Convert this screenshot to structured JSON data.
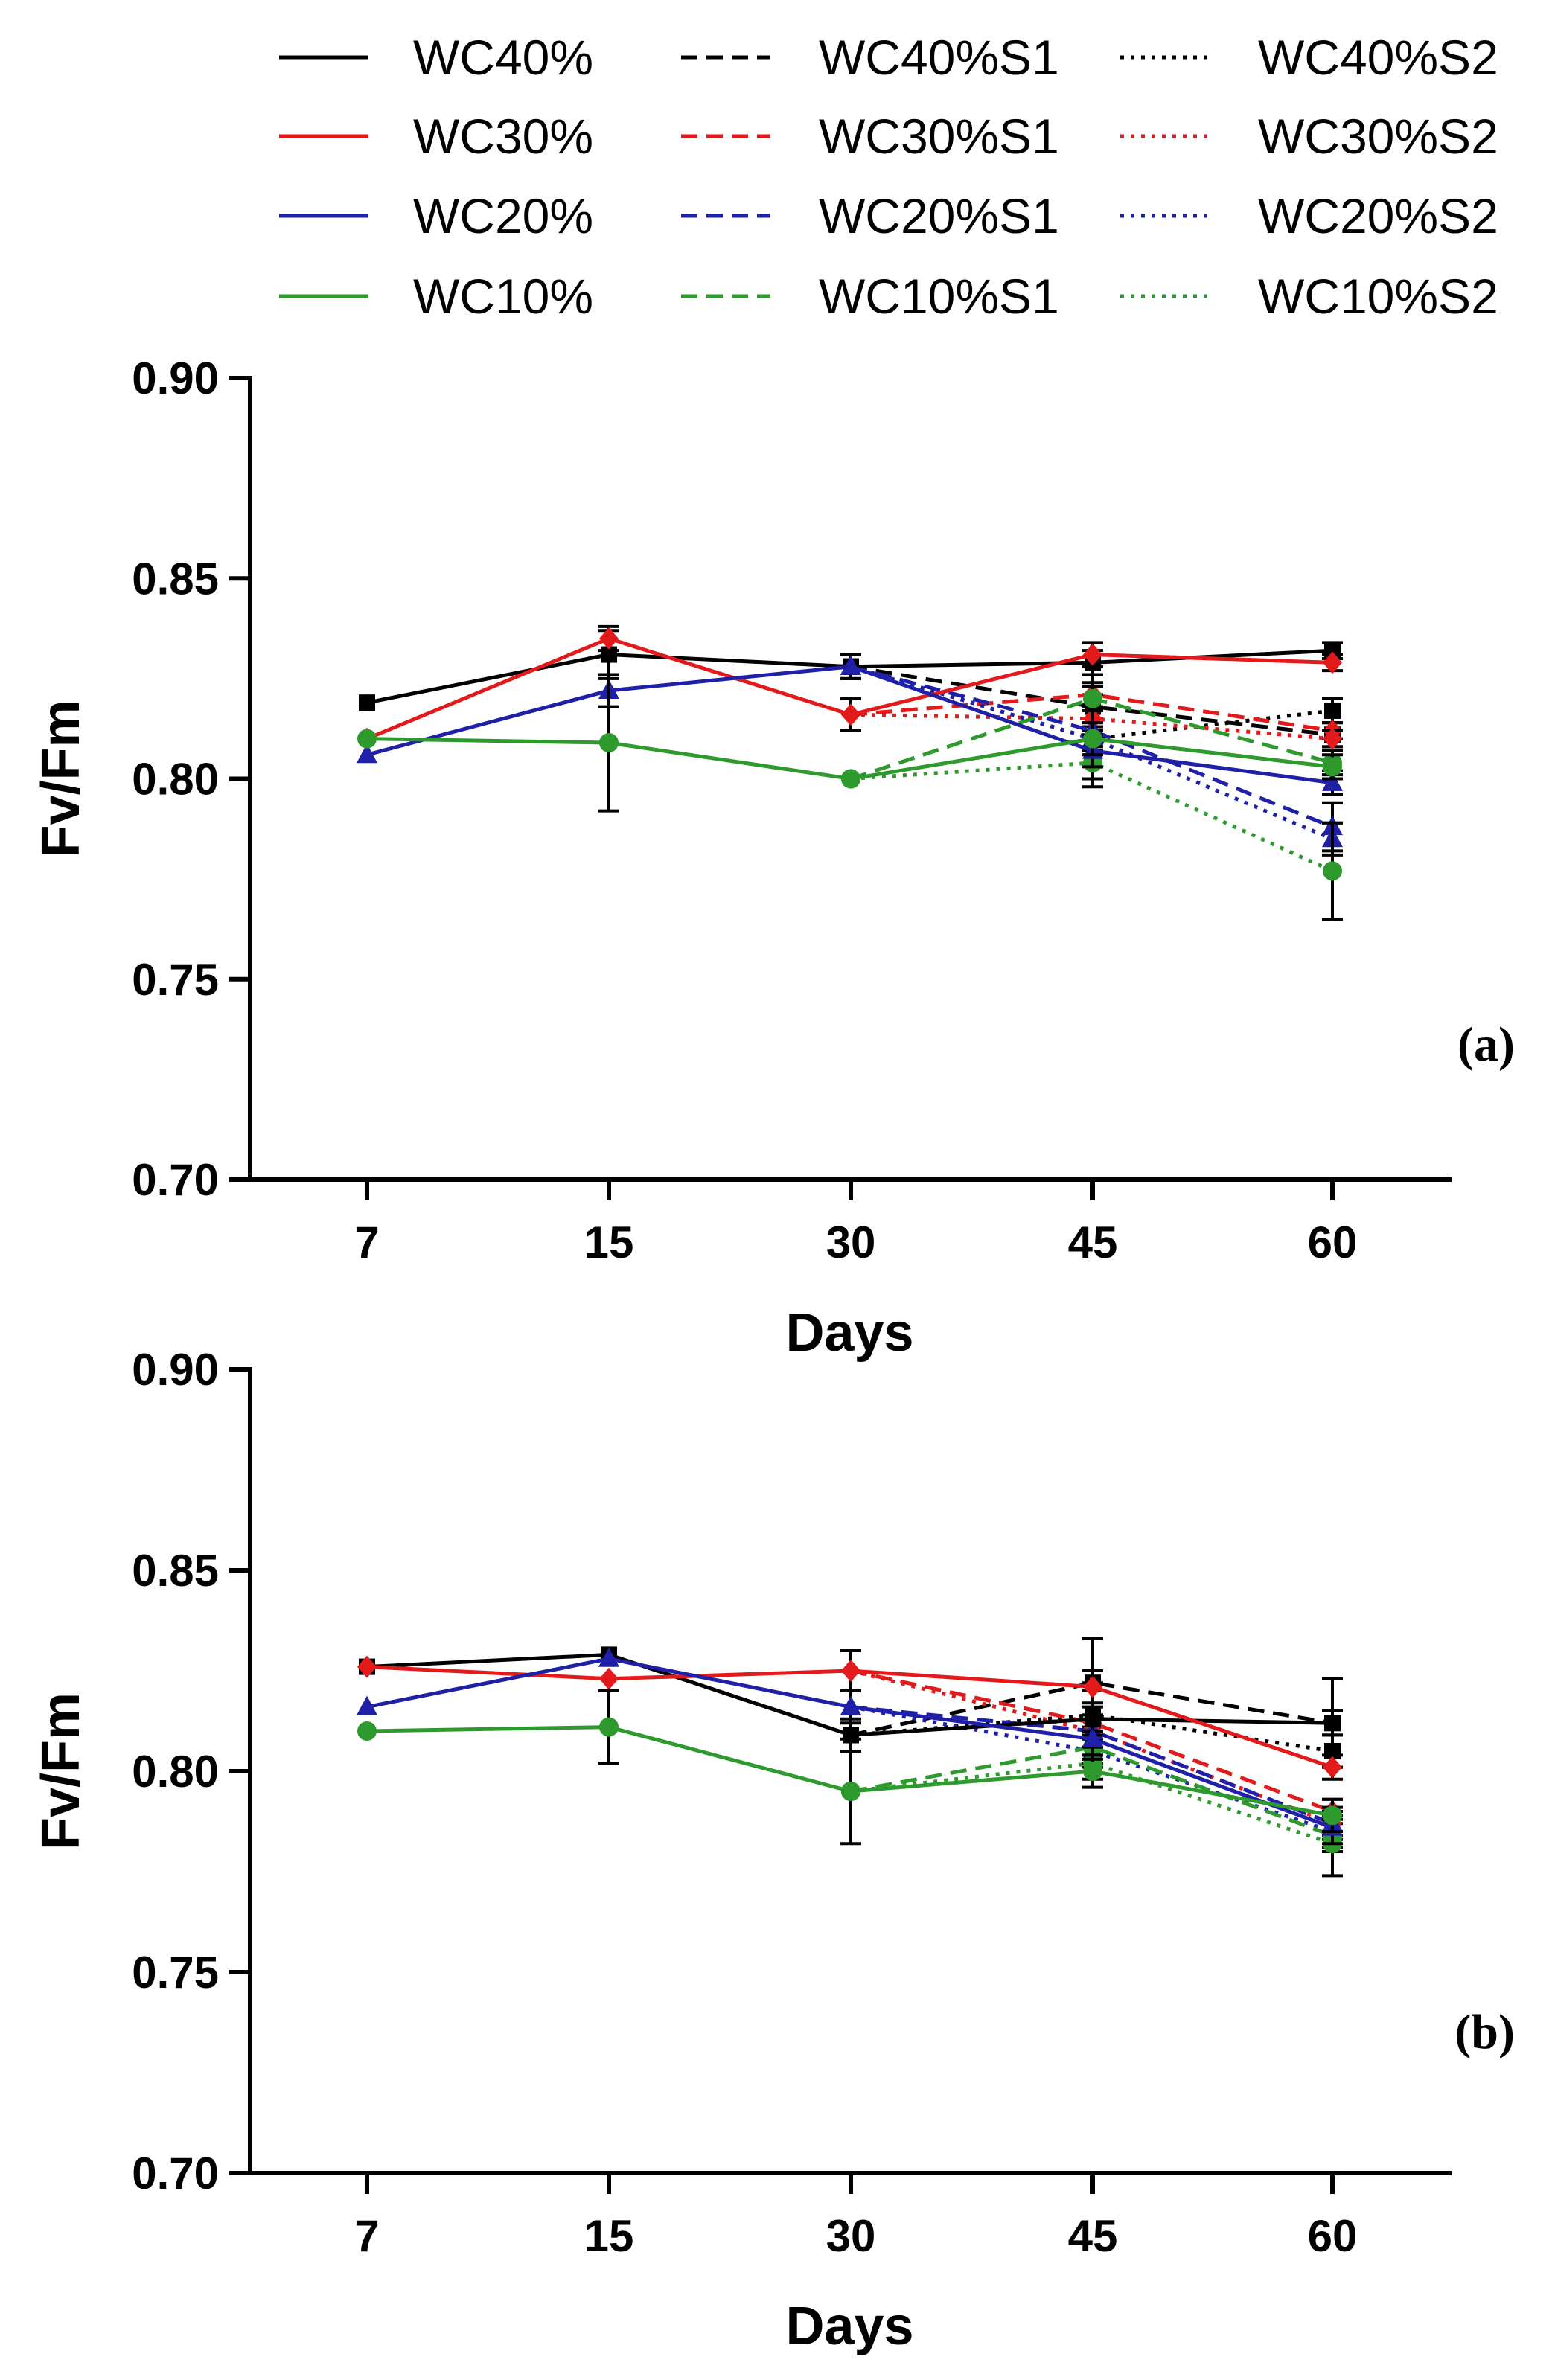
{
  "legend": [
    {
      "name": "WC40%",
      "color": "#000000",
      "dash": "solid"
    },
    {
      "name": "WC40%S1",
      "color": "#000000",
      "dash": "dashed"
    },
    {
      "name": "WC40%S2",
      "color": "#000000",
      "dash": "dotted"
    },
    {
      "name": "WC30%",
      "color": "#e31a1c",
      "dash": "solid"
    },
    {
      "name": "WC30%S1",
      "color": "#e31a1c",
      "dash": "dashed"
    },
    {
      "name": "WC30%S2",
      "color": "#e31a1c",
      "dash": "dotted"
    },
    {
      "name": "WC20%",
      "color": "#1f1fa8",
      "dash": "solid"
    },
    {
      "name": "WC20%S1",
      "color": "#1f1fa8",
      "dash": "dashed"
    },
    {
      "name": "WC20%S2",
      "color": "#1f1fa8",
      "dash": "dotted"
    },
    {
      "name": "WC10%",
      "color": "#2e9a2e",
      "dash": "solid"
    },
    {
      "name": "WC10%S1",
      "color": "#2e9a2e",
      "dash": "dashed"
    },
    {
      "name": "WC10%S2",
      "color": "#2e9a2e",
      "dash": "dotted"
    }
  ],
  "chart_data": [
    {
      "type": "line",
      "panel_label": "(a)",
      "xlabel": "Days",
      "ylabel": "Fv/Fm",
      "categories": [
        "7",
        "15",
        "30",
        "45",
        "60"
      ],
      "ylim": [
        0.7,
        0.9
      ],
      "yticks": [
        "0.70",
        "0.75",
        "0.80",
        "0.85",
        "0.90"
      ],
      "series": [
        {
          "name": "WC40%",
          "color": "#000000",
          "dash": "solid",
          "marker": "square",
          "values": [
            0.819,
            0.831,
            0.828,
            0.829,
            0.832
          ],
          "errors": [
            0,
            0.006,
            0.003,
            0.003,
            0.002
          ]
        },
        {
          "name": "WC30%",
          "color": "#e31a1c",
          "dash": "solid",
          "marker": "diamond",
          "values": [
            0.81,
            0.835,
            0.816,
            0.831,
            0.829
          ],
          "errors": [
            0,
            0.003,
            0.004,
            0.003,
            0.002
          ]
        },
        {
          "name": "WC20%",
          "color": "#1f1fa8",
          "dash": "solid",
          "marker": "triangle",
          "values": [
            0.806,
            0.822,
            0.828,
            0.807,
            0.799
          ],
          "errors": [
            0,
            0.004,
            0.003,
            0.004,
            0.003
          ]
        },
        {
          "name": "WC10%",
          "color": "#2e9a2e",
          "dash": "solid",
          "marker": "circle",
          "values": [
            0.81,
            0.809,
            0.8,
            0.81,
            0.803
          ],
          "errors": [
            0,
            0.017,
            0,
            0.004,
            0.003
          ]
        },
        {
          "name": "WC40%S1",
          "color": "#000000",
          "dash": "dashed",
          "marker": "square",
          "values": [
            null,
            null,
            0.828,
            0.818,
            0.811
          ],
          "errors": [
            0,
            0,
            0,
            0.003,
            0.003
          ]
        },
        {
          "name": "WC40%S2",
          "color": "#000000",
          "dash": "dotted",
          "marker": "square",
          "values": [
            null,
            null,
            0.828,
            0.81,
            0.817
          ],
          "errors": [
            0,
            0,
            0,
            0.003,
            0.003
          ]
        },
        {
          "name": "WC30%S1",
          "color": "#e31a1c",
          "dash": "dashed",
          "marker": "diamond",
          "values": [
            null,
            null,
            0.816,
            0.821,
            0.812
          ],
          "errors": [
            0,
            0,
            0,
            0.003,
            0.002
          ]
        },
        {
          "name": "WC30%S2",
          "color": "#e31a1c",
          "dash": "dotted",
          "marker": "diamond",
          "values": [
            null,
            null,
            0.816,
            0.815,
            0.81
          ],
          "errors": [
            0,
            0,
            0,
            0.003,
            0.002
          ]
        },
        {
          "name": "WC20%S1",
          "color": "#1f1fa8",
          "dash": "dashed",
          "marker": "triangle",
          "values": [
            null,
            null,
            0.828,
            0.812,
            0.788
          ],
          "errors": [
            0,
            0,
            0,
            0.014,
            0.006
          ]
        },
        {
          "name": "WC20%S2",
          "color": "#1f1fa8",
          "dash": "dotted",
          "marker": "triangle",
          "values": [
            null,
            null,
            0.828,
            0.81,
            0.785
          ],
          "errors": [
            0,
            0,
            0,
            0.004,
            0.004
          ]
        },
        {
          "name": "WC10%S1",
          "color": "#2e9a2e",
          "dash": "dashed",
          "marker": "circle",
          "values": [
            null,
            null,
            0.8,
            0.82,
            0.804
          ],
          "errors": [
            0,
            0,
            0,
            0.003,
            0.003
          ]
        },
        {
          "name": "WC10%S2",
          "color": "#2e9a2e",
          "dash": "dotted",
          "marker": "circle",
          "values": [
            null,
            null,
            0.8,
            0.804,
            0.777
          ],
          "errors": [
            0,
            0,
            0,
            0.004,
            0.012
          ]
        }
      ]
    },
    {
      "type": "line",
      "panel_label": "(b)",
      "xlabel": "Days",
      "ylabel": "Fv/Fm",
      "categories": [
        "7",
        "15",
        "30",
        "45",
        "60"
      ],
      "ylim": [
        0.7,
        0.9
      ],
      "yticks": [
        "0.70",
        "0.75",
        "0.80",
        "0.85",
        "0.90"
      ],
      "series": [
        {
          "name": "WC40%",
          "color": "#000000",
          "dash": "solid",
          "marker": "square",
          "values": [
            0.826,
            0.829,
            0.809,
            0.813,
            0.812
          ],
          "errors": [
            0,
            0,
            0.004,
            0.009,
            0.011
          ]
        },
        {
          "name": "WC30%",
          "color": "#e31a1c",
          "dash": "solid",
          "marker": "diamond",
          "values": [
            0.826,
            0.823,
            0.825,
            0.821,
            0.801
          ],
          "errors": [
            0,
            0,
            0.005,
            0.004,
            0.003
          ]
        },
        {
          "name": "WC20%",
          "color": "#1f1fa8",
          "dash": "solid",
          "marker": "triangle",
          "values": [
            0.816,
            0.828,
            0.816,
            0.808,
            0.786
          ],
          "errors": [
            0,
            0,
            0.004,
            0.005,
            0.004
          ]
        },
        {
          "name": "WC10%",
          "color": "#2e9a2e",
          "dash": "solid",
          "marker": "circle",
          "values": [
            0.81,
            0.811,
            0.795,
            0.8,
            0.789
          ],
          "errors": [
            0,
            0.009,
            0.013,
            0.004,
            0.004
          ]
        },
        {
          "name": "WC40%S1",
          "color": "#000000",
          "dash": "dashed",
          "marker": "square",
          "values": [
            null,
            null,
            0.809,
            0.822,
            0.812
          ],
          "errors": [
            0,
            0,
            0,
            0.011,
            0.003
          ]
        },
        {
          "name": "WC40%S2",
          "color": "#000000",
          "dash": "dotted",
          "marker": "square",
          "values": [
            null,
            null,
            0.809,
            0.814,
            0.805
          ],
          "errors": [
            0,
            0,
            0,
            0.006,
            0.004
          ]
        },
        {
          "name": "WC30%S1",
          "color": "#e31a1c",
          "dash": "dashed",
          "marker": "diamond",
          "values": [
            null,
            null,
            0.825,
            0.812,
            0.79
          ],
          "errors": [
            0,
            0,
            0,
            0.004,
            0.003
          ]
        },
        {
          "name": "WC30%S2",
          "color": "#e31a1c",
          "dash": "dotted",
          "marker": "diamond",
          "values": [
            null,
            null,
            0.825,
            0.81,
            0.787
          ],
          "errors": [
            0,
            0,
            0,
            0.004,
            0.003
          ]
        },
        {
          "name": "WC20%S1",
          "color": "#1f1fa8",
          "dash": "dashed",
          "marker": "triangle",
          "values": [
            null,
            null,
            0.816,
            0.81,
            0.787
          ],
          "errors": [
            0,
            0,
            0,
            0.004,
            0.004
          ]
        },
        {
          "name": "WC20%S2",
          "color": "#1f1fa8",
          "dash": "dotted",
          "marker": "triangle",
          "values": [
            null,
            null,
            0.816,
            0.805,
            0.785
          ],
          "errors": [
            0,
            0,
            0,
            0.004,
            0.004
          ]
        },
        {
          "name": "WC10%S1",
          "color": "#2e9a2e",
          "dash": "dashed",
          "marker": "circle",
          "values": [
            null,
            null,
            0.795,
            0.806,
            0.784
          ],
          "errors": [
            0,
            0,
            0,
            0.004,
            0.004
          ]
        },
        {
          "name": "WC10%S2",
          "color": "#2e9a2e",
          "dash": "dotted",
          "marker": "circle",
          "values": [
            null,
            null,
            0.795,
            0.802,
            0.782
          ],
          "errors": [
            0,
            0,
            0,
            0.004,
            0.008
          ]
        }
      ]
    }
  ]
}
